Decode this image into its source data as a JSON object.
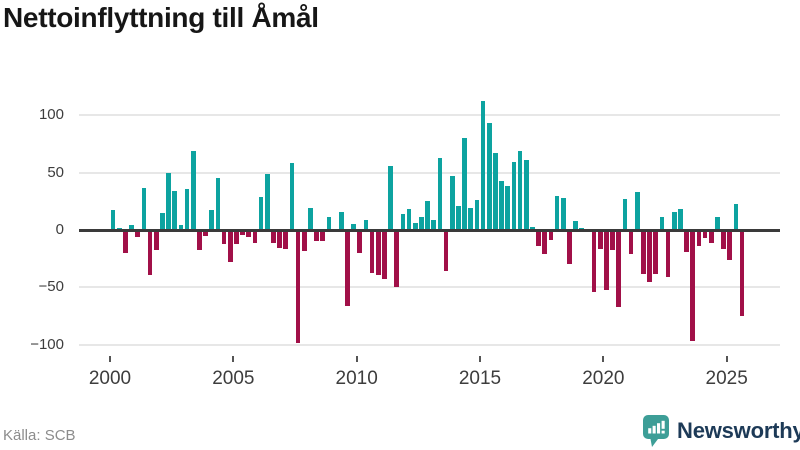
{
  "header": {
    "title": "Nettoinflyttning till Åmål"
  },
  "footer": {
    "source": "Källa: SCB",
    "brand": "Newsworthy"
  },
  "colors": {
    "positive": "#0da3a0",
    "negative": "#a11048",
    "zero_line": "#3a3a3a",
    "gridline": "#e7e7e7",
    "axis_text": "#3d3d3d",
    "title_text": "#161616",
    "source_text": "#8c8c8c",
    "brand_text": "#1d3a57",
    "brand_icon": "#3d9e97"
  },
  "chart_data": {
    "type": "bar",
    "title": "Nettoinflyttning till Åmål",
    "frequency": "quarterly",
    "start_period": "2000-Q1",
    "end_period": "2025-Q3",
    "values": [
      17,
      2,
      -19,
      4,
      -5,
      37,
      -38,
      -16,
      15,
      50,
      34,
      4,
      36,
      69,
      -16,
      -4,
      17,
      45,
      -11,
      -27,
      -11,
      -3,
      -5,
      -10,
      29,
      49,
      -10,
      -14,
      -15,
      58,
      -97,
      -17,
      19,
      -8,
      -8,
      11,
      0,
      16,
      -65,
      5,
      -19,
      9,
      -36,
      -38,
      -41,
      56,
      -48,
      14,
      18,
      6,
      11,
      25,
      9,
      63,
      -34,
      47,
      21,
      80,
      19,
      26,
      112,
      93,
      67,
      43,
      38,
      59,
      69,
      61,
      3,
      -13,
      -20,
      -7,
      30,
      28,
      -28,
      8,
      2,
      0,
      -53,
      -15,
      -51,
      -16,
      -66,
      27,
      -20,
      33,
      -37,
      -44,
      -37,
      11,
      -40,
      16,
      18,
      -18,
      -95,
      -13,
      -6,
      -10,
      11,
      -15,
      -25,
      23,
      -74
    ],
    "x_ticks": [
      {
        "label": "2000",
        "year": 2000
      },
      {
        "label": "2005",
        "year": 2005
      },
      {
        "label": "2010",
        "year": 2010
      },
      {
        "label": "2015",
        "year": 2015
      },
      {
        "label": "2020",
        "year": 2020
      },
      {
        "label": "2025",
        "year": 2025
      }
    ],
    "y_ticks": [
      {
        "label": "100",
        "value": 100
      },
      {
        "label": "50",
        "value": 50
      },
      {
        "label": "0",
        "value": 0
      },
      {
        "label": "−50",
        "value": -50
      },
      {
        "label": "−100",
        "value": -100
      }
    ],
    "ylim": [
      -110,
      118
    ],
    "grid": true,
    "legend": null
  }
}
